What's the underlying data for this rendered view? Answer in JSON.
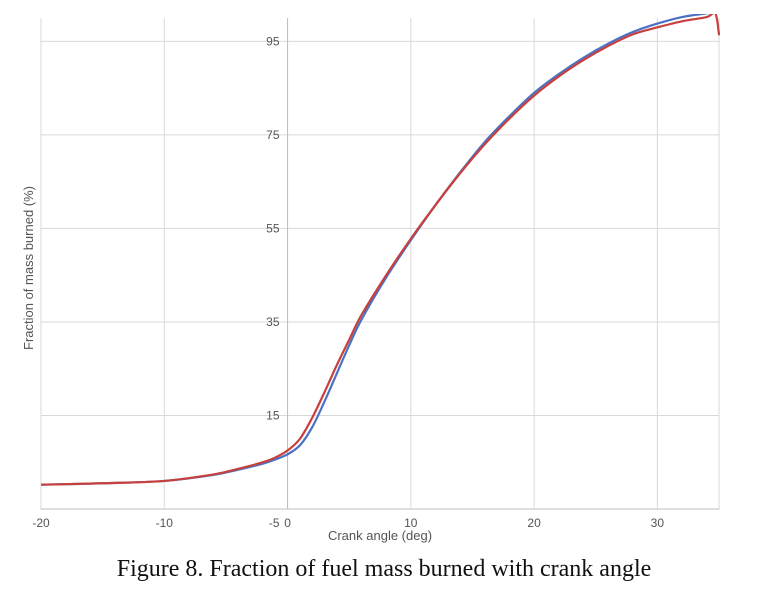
{
  "caption": "Figure 8.  Fraction of fuel mass burned with crank angle",
  "chart_data": {
    "type": "line",
    "xlabel": "Crank angle (deg)",
    "ylabel": "Fraction of mass burned (%)",
    "xlim": [
      -20,
      35
    ],
    "ylim": [
      -5,
      100
    ],
    "x_ticks": [
      -20,
      -10,
      0,
      10,
      20,
      30
    ],
    "x_tick_labels": [
      "-20",
      "-10",
      "0",
      "10",
      "20",
      "30"
    ],
    "y_ticks": [
      -5,
      15,
      35,
      55,
      75,
      95
    ],
    "y_tick_labels": [
      "-5",
      "15",
      "35",
      "55",
      "75",
      "95"
    ],
    "grid": true,
    "series": [
      {
        "color": "#4a72c4",
        "x": [
          -20,
          -15,
          -10,
          -6,
          -4,
          -2,
          -1,
          0,
          1,
          2,
          3,
          4,
          5,
          6,
          8,
          10,
          12,
          14,
          16,
          18,
          20,
          22,
          24,
          26,
          28,
          30,
          32,
          34,
          35
        ],
        "y": [
          0.2,
          0.5,
          1.0,
          2.3,
          3.4,
          4.7,
          5.6,
          6.7,
          8.6,
          12.5,
          18.0,
          24.0,
          30.0,
          35.5,
          44.5,
          52.5,
          60.0,
          67.0,
          73.5,
          79.0,
          84.0,
          88.0,
          91.5,
          94.5,
          97.0,
          98.8,
          100.2,
          101.0,
          101.2
        ]
      },
      {
        "color": "#c8403e",
        "x": [
          -20,
          -15,
          -10,
          -6,
          -4,
          -2,
          -1,
          0,
          1,
          2,
          3,
          4,
          5,
          6,
          8,
          10,
          12,
          14,
          16,
          18,
          20,
          22,
          24,
          26,
          28,
          30,
          32,
          34,
          34.7,
          35
        ],
        "y": [
          0.2,
          0.5,
          1.0,
          2.4,
          3.6,
          5.0,
          6.0,
          7.5,
          10.0,
          14.5,
          20.0,
          25.8,
          31.2,
          36.5,
          45.0,
          52.8,
          60.0,
          66.8,
          73.0,
          78.5,
          83.4,
          87.5,
          91.0,
          94.0,
          96.5,
          98.0,
          99.3,
          100.2,
          101.0,
          96.5
        ]
      }
    ]
  }
}
